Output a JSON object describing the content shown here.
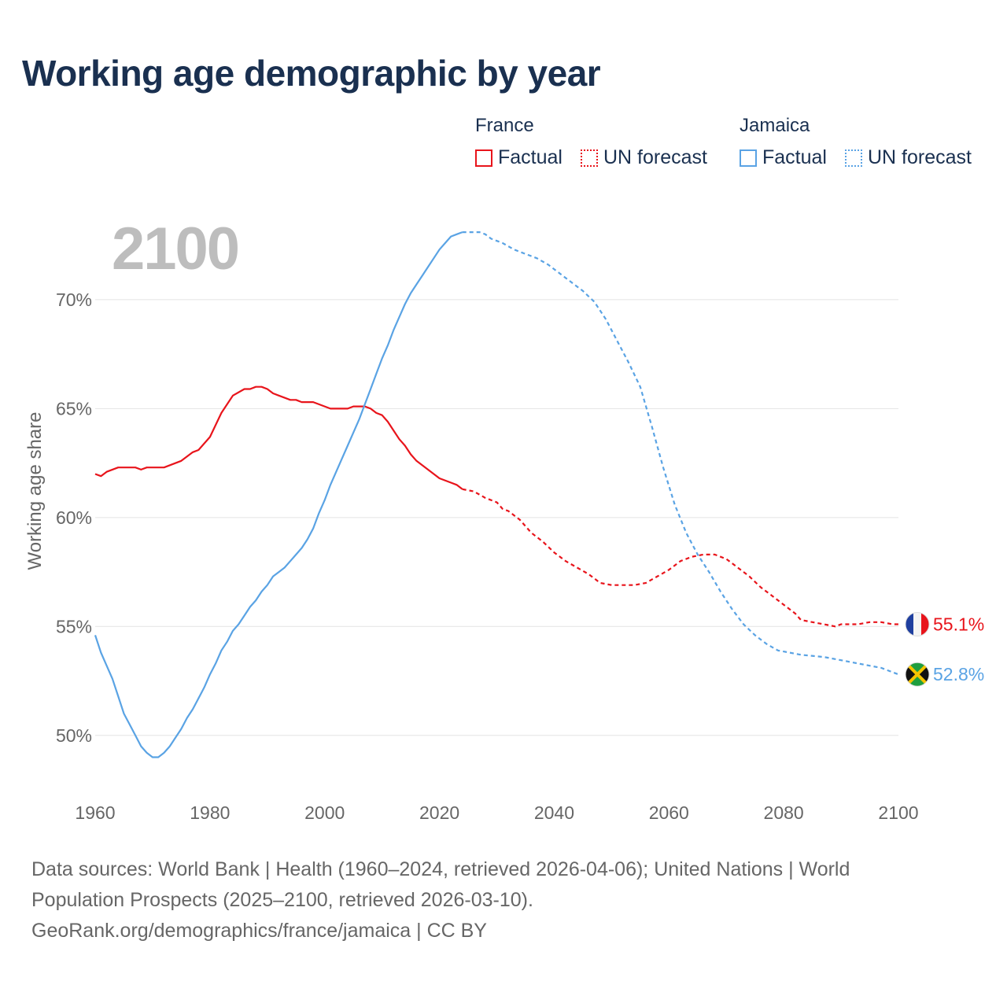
{
  "header": {
    "title": "Working age demographic by year"
  },
  "legend": {
    "groups": [
      {
        "country": "France",
        "factual_label": "Factual",
        "forecast_label": "UN forecast"
      },
      {
        "country": "Jamaica",
        "factual_label": "Factual",
        "forecast_label": "UN forecast"
      }
    ]
  },
  "colors": {
    "france": "#e8141b",
    "jamaica": "#5aa3e4",
    "year_watermark": "#bdbdbd"
  },
  "chart_data": {
    "type": "line",
    "title": "Working age demographic by year",
    "year_label": "2100",
    "xlabel": "",
    "ylabel": "Working age share",
    "xlim": [
      1960,
      2100
    ],
    "ylim": [
      47.5,
      73.5
    ],
    "x_ticks": [
      "1960",
      "1980",
      "2000",
      "2020",
      "2040",
      "2060",
      "2080",
      "2100"
    ],
    "x_tick_values": [
      1960,
      1980,
      2000,
      2020,
      2040,
      2060,
      2080,
      2100
    ],
    "y_ticks": [
      "50%",
      "55%",
      "60%",
      "65%",
      "70%"
    ],
    "y_tick_values": [
      50,
      55,
      60,
      65,
      70
    ],
    "factual_until": 2024,
    "series": [
      {
        "name": "France",
        "end_label": "55.1%",
        "flag": "france",
        "points": [
          [
            1960,
            62.0
          ],
          [
            1961,
            61.9
          ],
          [
            1962,
            62.1
          ],
          [
            1964,
            62.3
          ],
          [
            1966,
            62.3
          ],
          [
            1967,
            62.3
          ],
          [
            1968,
            62.2
          ],
          [
            1969,
            62.3
          ],
          [
            1972,
            62.3
          ],
          [
            1975,
            62.6
          ],
          [
            1977,
            63.0
          ],
          [
            1978,
            63.1
          ],
          [
            1980,
            63.7
          ],
          [
            1982,
            64.8
          ],
          [
            1984,
            65.6
          ],
          [
            1986,
            65.9
          ],
          [
            1987,
            65.9
          ],
          [
            1988,
            66.0
          ],
          [
            1989,
            66.0
          ],
          [
            1990,
            65.9
          ],
          [
            1991,
            65.7
          ],
          [
            1992,
            65.6
          ],
          [
            1994,
            65.4
          ],
          [
            1995,
            65.4
          ],
          [
            1996,
            65.3
          ],
          [
            1998,
            65.3
          ],
          [
            2000,
            65.1
          ],
          [
            2001,
            65.0
          ],
          [
            2004,
            65.0
          ],
          [
            2005,
            65.1
          ],
          [
            2006,
            65.1
          ],
          [
            2007,
            65.1
          ],
          [
            2008,
            65.0
          ],
          [
            2009,
            64.8
          ],
          [
            2010,
            64.7
          ],
          [
            2011,
            64.4
          ],
          [
            2012,
            64.0
          ],
          [
            2013,
            63.6
          ],
          [
            2014,
            63.3
          ],
          [
            2015,
            62.9
          ],
          [
            2016,
            62.6
          ],
          [
            2018,
            62.2
          ],
          [
            2020,
            61.8
          ],
          [
            2022,
            61.6
          ],
          [
            2023,
            61.5
          ],
          [
            2024,
            61.3
          ],
          [
            2026,
            61.2
          ],
          [
            2028,
            60.9
          ],
          [
            2030,
            60.7
          ],
          [
            2031,
            60.4
          ],
          [
            2032,
            60.3
          ],
          [
            2034,
            59.9
          ],
          [
            2036,
            59.3
          ],
          [
            2038,
            58.9
          ],
          [
            2040,
            58.4
          ],
          [
            2042,
            58.0
          ],
          [
            2044,
            57.7
          ],
          [
            2046,
            57.4
          ],
          [
            2048,
            57.0
          ],
          [
            2050,
            56.9
          ],
          [
            2054,
            56.9
          ],
          [
            2056,
            57.0
          ],
          [
            2058,
            57.3
          ],
          [
            2060,
            57.6
          ],
          [
            2062,
            58.0
          ],
          [
            2064,
            58.2
          ],
          [
            2066,
            58.3
          ],
          [
            2068,
            58.3
          ],
          [
            2070,
            58.1
          ],
          [
            2072,
            57.7
          ],
          [
            2074,
            57.3
          ],
          [
            2076,
            56.8
          ],
          [
            2078,
            56.4
          ],
          [
            2080,
            56.0
          ],
          [
            2082,
            55.6
          ],
          [
            2083,
            55.3
          ],
          [
            2085,
            55.2
          ],
          [
            2087,
            55.1
          ],
          [
            2089,
            55.0
          ],
          [
            2090,
            55.1
          ],
          [
            2093,
            55.1
          ],
          [
            2095,
            55.2
          ],
          [
            2097,
            55.2
          ],
          [
            2099,
            55.1
          ],
          [
            2100,
            55.1
          ]
        ]
      },
      {
        "name": "Jamaica",
        "end_label": "52.8%",
        "flag": "jamaica",
        "points": [
          [
            1960,
            54.6
          ],
          [
            1961,
            53.8
          ],
          [
            1962,
            53.2
          ],
          [
            1963,
            52.6
          ],
          [
            1964,
            51.8
          ],
          [
            1965,
            51.0
          ],
          [
            1966,
            50.5
          ],
          [
            1967,
            50.0
          ],
          [
            1968,
            49.5
          ],
          [
            1969,
            49.2
          ],
          [
            1970,
            49.0
          ],
          [
            1971,
            49.0
          ],
          [
            1972,
            49.2
          ],
          [
            1973,
            49.5
          ],
          [
            1974,
            49.9
          ],
          [
            1975,
            50.3
          ],
          [
            1976,
            50.8
          ],
          [
            1977,
            51.2
          ],
          [
            1978,
            51.7
          ],
          [
            1979,
            52.2
          ],
          [
            1980,
            52.8
          ],
          [
            1981,
            53.3
          ],
          [
            1982,
            53.9
          ],
          [
            1983,
            54.3
          ],
          [
            1984,
            54.8
          ],
          [
            1985,
            55.1
          ],
          [
            1986,
            55.5
          ],
          [
            1987,
            55.9
          ],
          [
            1988,
            56.2
          ],
          [
            1989,
            56.6
          ],
          [
            1990,
            56.9
          ],
          [
            1991,
            57.3
          ],
          [
            1992,
            57.5
          ],
          [
            1993,
            57.7
          ],
          [
            1994,
            58.0
          ],
          [
            1995,
            58.3
          ],
          [
            1996,
            58.6
          ],
          [
            1997,
            59.0
          ],
          [
            1998,
            59.5
          ],
          [
            1999,
            60.2
          ],
          [
            2000,
            60.8
          ],
          [
            2001,
            61.5
          ],
          [
            2002,
            62.1
          ],
          [
            2003,
            62.7
          ],
          [
            2004,
            63.3
          ],
          [
            2005,
            63.9
          ],
          [
            2006,
            64.5
          ],
          [
            2007,
            65.2
          ],
          [
            2008,
            65.9
          ],
          [
            2009,
            66.6
          ],
          [
            2010,
            67.3
          ],
          [
            2011,
            67.9
          ],
          [
            2012,
            68.6
          ],
          [
            2013,
            69.2
          ],
          [
            2014,
            69.8
          ],
          [
            2015,
            70.3
          ],
          [
            2016,
            70.7
          ],
          [
            2017,
            71.1
          ],
          [
            2018,
            71.5
          ],
          [
            2019,
            71.9
          ],
          [
            2020,
            72.3
          ],
          [
            2021,
            72.6
          ],
          [
            2022,
            72.9
          ],
          [
            2023,
            73.0
          ],
          [
            2024,
            73.1
          ],
          [
            2026,
            73.1
          ],
          [
            2027,
            73.1
          ],
          [
            2028,
            73.0
          ],
          [
            2029,
            72.8
          ],
          [
            2031,
            72.6
          ],
          [
            2033,
            72.3
          ],
          [
            2035,
            72.1
          ],
          [
            2037,
            71.9
          ],
          [
            2039,
            71.6
          ],
          [
            2041,
            71.2
          ],
          [
            2043,
            70.8
          ],
          [
            2045,
            70.4
          ],
          [
            2047,
            69.9
          ],
          [
            2049,
            69.1
          ],
          [
            2051,
            68.1
          ],
          [
            2053,
            67.1
          ],
          [
            2055,
            66.0
          ],
          [
            2057,
            64.2
          ],
          [
            2059,
            62.3
          ],
          [
            2061,
            60.6
          ],
          [
            2063,
            59.3
          ],
          [
            2065,
            58.3
          ],
          [
            2067,
            57.5
          ],
          [
            2069,
            56.6
          ],
          [
            2071,
            55.8
          ],
          [
            2073,
            55.1
          ],
          [
            2075,
            54.6
          ],
          [
            2077,
            54.2
          ],
          [
            2079,
            53.9
          ],
          [
            2081,
            53.8
          ],
          [
            2083,
            53.7
          ],
          [
            2087,
            53.6
          ],
          [
            2089,
            53.5
          ],
          [
            2091,
            53.4
          ],
          [
            2093,
            53.3
          ],
          [
            2095,
            53.2
          ],
          [
            2097,
            53.1
          ],
          [
            2099,
            52.9
          ],
          [
            2100,
            52.8
          ]
        ]
      }
    ]
  },
  "footer": {
    "line1": "Data sources: World Bank | Health (1960–2024, retrieved 2026-04-06); United Nations | World",
    "line2": "Population Prospects (2025–2100, retrieved 2026-03-10).",
    "line3": "GeoRank.org/demographics/france/jamaica | CC BY"
  }
}
